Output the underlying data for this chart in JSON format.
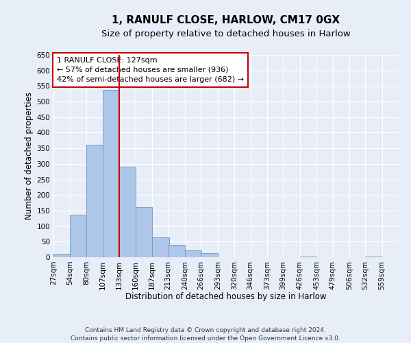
{
  "title": "1, RANULF CLOSE, HARLOW, CM17 0GX",
  "subtitle": "Size of property relative to detached houses in Harlow",
  "xlabel": "Distribution of detached houses by size in Harlow",
  "ylabel": "Number of detached properties",
  "bar_left_edges": [
    27,
    54,
    80,
    107,
    133,
    160,
    187,
    213,
    240,
    266,
    293,
    320,
    346,
    373,
    399,
    426,
    453,
    479,
    506,
    532
  ],
  "bar_heights": [
    10,
    136,
    362,
    537,
    291,
    160,
    65,
    40,
    22,
    13,
    0,
    0,
    0,
    0,
    0,
    2,
    0,
    0,
    0,
    2
  ],
  "bin_width": 27,
  "bar_color": "#aec6e8",
  "bar_edge_color": "#6699cc",
  "vline_x": 133,
  "vline_color": "#cc0000",
  "ylim": [
    0,
    650
  ],
  "yticks": [
    0,
    50,
    100,
    150,
    200,
    250,
    300,
    350,
    400,
    450,
    500,
    550,
    600,
    650
  ],
  "xlim_left": 27,
  "xlim_right": 586,
  "xtick_labels": [
    "27sqm",
    "54sqm",
    "80sqm",
    "107sqm",
    "133sqm",
    "160sqm",
    "187sqm",
    "213sqm",
    "240sqm",
    "266sqm",
    "293sqm",
    "320sqm",
    "346sqm",
    "373sqm",
    "399sqm",
    "426sqm",
    "453sqm",
    "479sqm",
    "506sqm",
    "532sqm",
    "559sqm"
  ],
  "xtick_positions": [
    27,
    54,
    80,
    107,
    133,
    160,
    187,
    213,
    240,
    266,
    293,
    320,
    346,
    373,
    399,
    426,
    453,
    479,
    506,
    532,
    559
  ],
  "annotation_text": "1 RANULF CLOSE: 127sqm\n← 57% of detached houses are smaller (936)\n42% of semi-detached houses are larger (682) →",
  "annotation_box_facecolor": "#ffffff",
  "annotation_box_edgecolor": "#cc0000",
  "footer_line1": "Contains HM Land Registry data © Crown copyright and database right 2024.",
  "footer_line2": "Contains public sector information licensed under the Open Government Licence v3.0.",
  "background_color": "#e8eef8",
  "grid_color": "#ffffff",
  "title_fontsize": 11,
  "subtitle_fontsize": 9.5,
  "axis_label_fontsize": 8.5,
  "tick_fontsize": 7.5,
  "annotation_fontsize": 8,
  "footer_fontsize": 6.5
}
